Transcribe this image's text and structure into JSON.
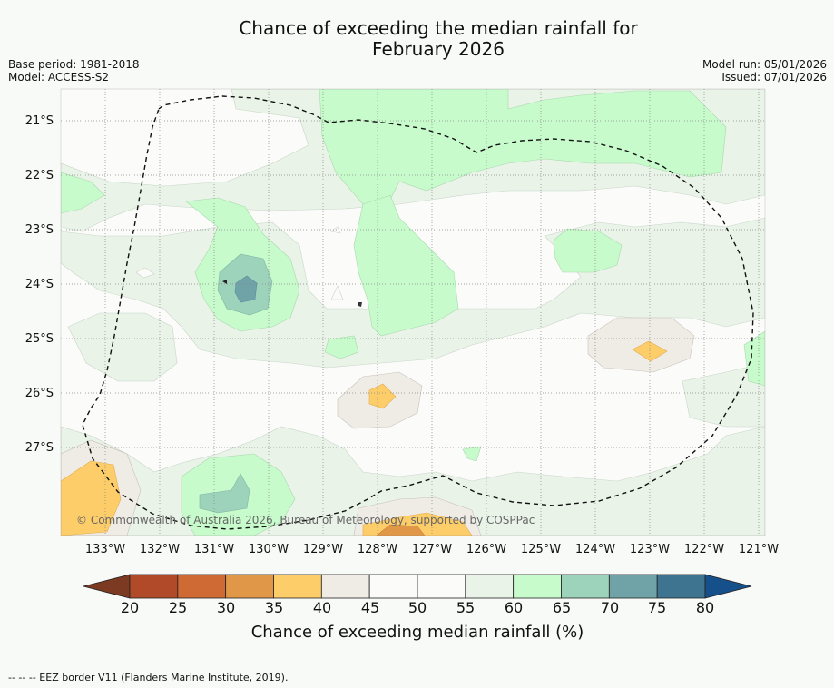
{
  "title_line1": "Chance of exceeding the median rainfall for",
  "title_line2": "February 2026",
  "base_period": "Base period: 1981-2018",
  "model": "Model: ACCESS-S2",
  "model_run": "Model run: 05/01/2026",
  "issued": "Issued: 07/01/2026",
  "copyright": "© Commonwealth of Australia 2026, Bureau of Meteorology, supported by COSPPac",
  "latitude_labels": [
    "21°S",
    "22°S",
    "23°S",
    "24°S",
    "25°S",
    "26°S",
    "27°S"
  ],
  "longitude_labels": [
    "133°W",
    "132°W",
    "131°W",
    "130°W",
    "129°W",
    "128°W",
    "127°W",
    "126°W",
    "125°W",
    "124°W",
    "123°W",
    "122°W",
    "121°W"
  ],
  "colorbar": {
    "ticks": [
      "20",
      "25",
      "30",
      "35",
      "40",
      "45",
      "50",
      "55",
      "60",
      "65",
      "70",
      "75",
      "80"
    ],
    "colors": [
      "#7d3a22",
      "#b04a28",
      "#cf6a35",
      "#e09848",
      "#fdcd6a",
      "#efebe5",
      "#fbfbfa",
      "#fbfbfa",
      "#e9f3e8",
      "#c8fbcc",
      "#9dd2bb",
      "#6fa3a8",
      "#3e7490",
      "#16508a"
    ],
    "label": "Chance of exceeding median rainfall (%)"
  },
  "footer": "--  --  -- EEZ border V11 (Flanders Marine Institute, 2019)."
}
